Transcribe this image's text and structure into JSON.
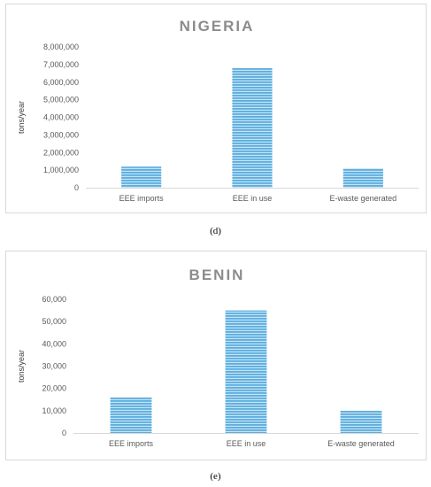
{
  "chart_data": [
    {
      "type": "bar",
      "title": "NIGERIA",
      "ylabel": "tons/year",
      "categories": [
        "EEE imports",
        "EEE in use",
        "E-waste generated"
      ],
      "values": [
        1200000,
        6800000,
        1100000
      ],
      "ylim": [
        0,
        8000000
      ],
      "yticks": [
        "0",
        "1,000,000",
        "2,000,000",
        "3,000,000",
        "4,000,000",
        "5,000,000",
        "6,000,000",
        "7,000,000",
        "8,000,000"
      ],
      "bar_color": "#5badde",
      "stripe_color": "#c6e4f6",
      "grid": false
    },
    {
      "type": "bar",
      "title": "BENIN",
      "ylabel": "tons/year",
      "categories": [
        "EEE imports",
        "EEE in use",
        "E-waste generated"
      ],
      "values": [
        16000,
        55000,
        10000
      ],
      "ylim": [
        0,
        60000
      ],
      "yticks": [
        "0",
        "10,000",
        "20,000",
        "30,000",
        "40,000",
        "50,000",
        "60,000"
      ],
      "bar_color": "#5badde",
      "stripe_color": "#c6e4f6",
      "grid": false
    }
  ],
  "figure_labels": {
    "d": "(d)",
    "e": "(e)"
  }
}
